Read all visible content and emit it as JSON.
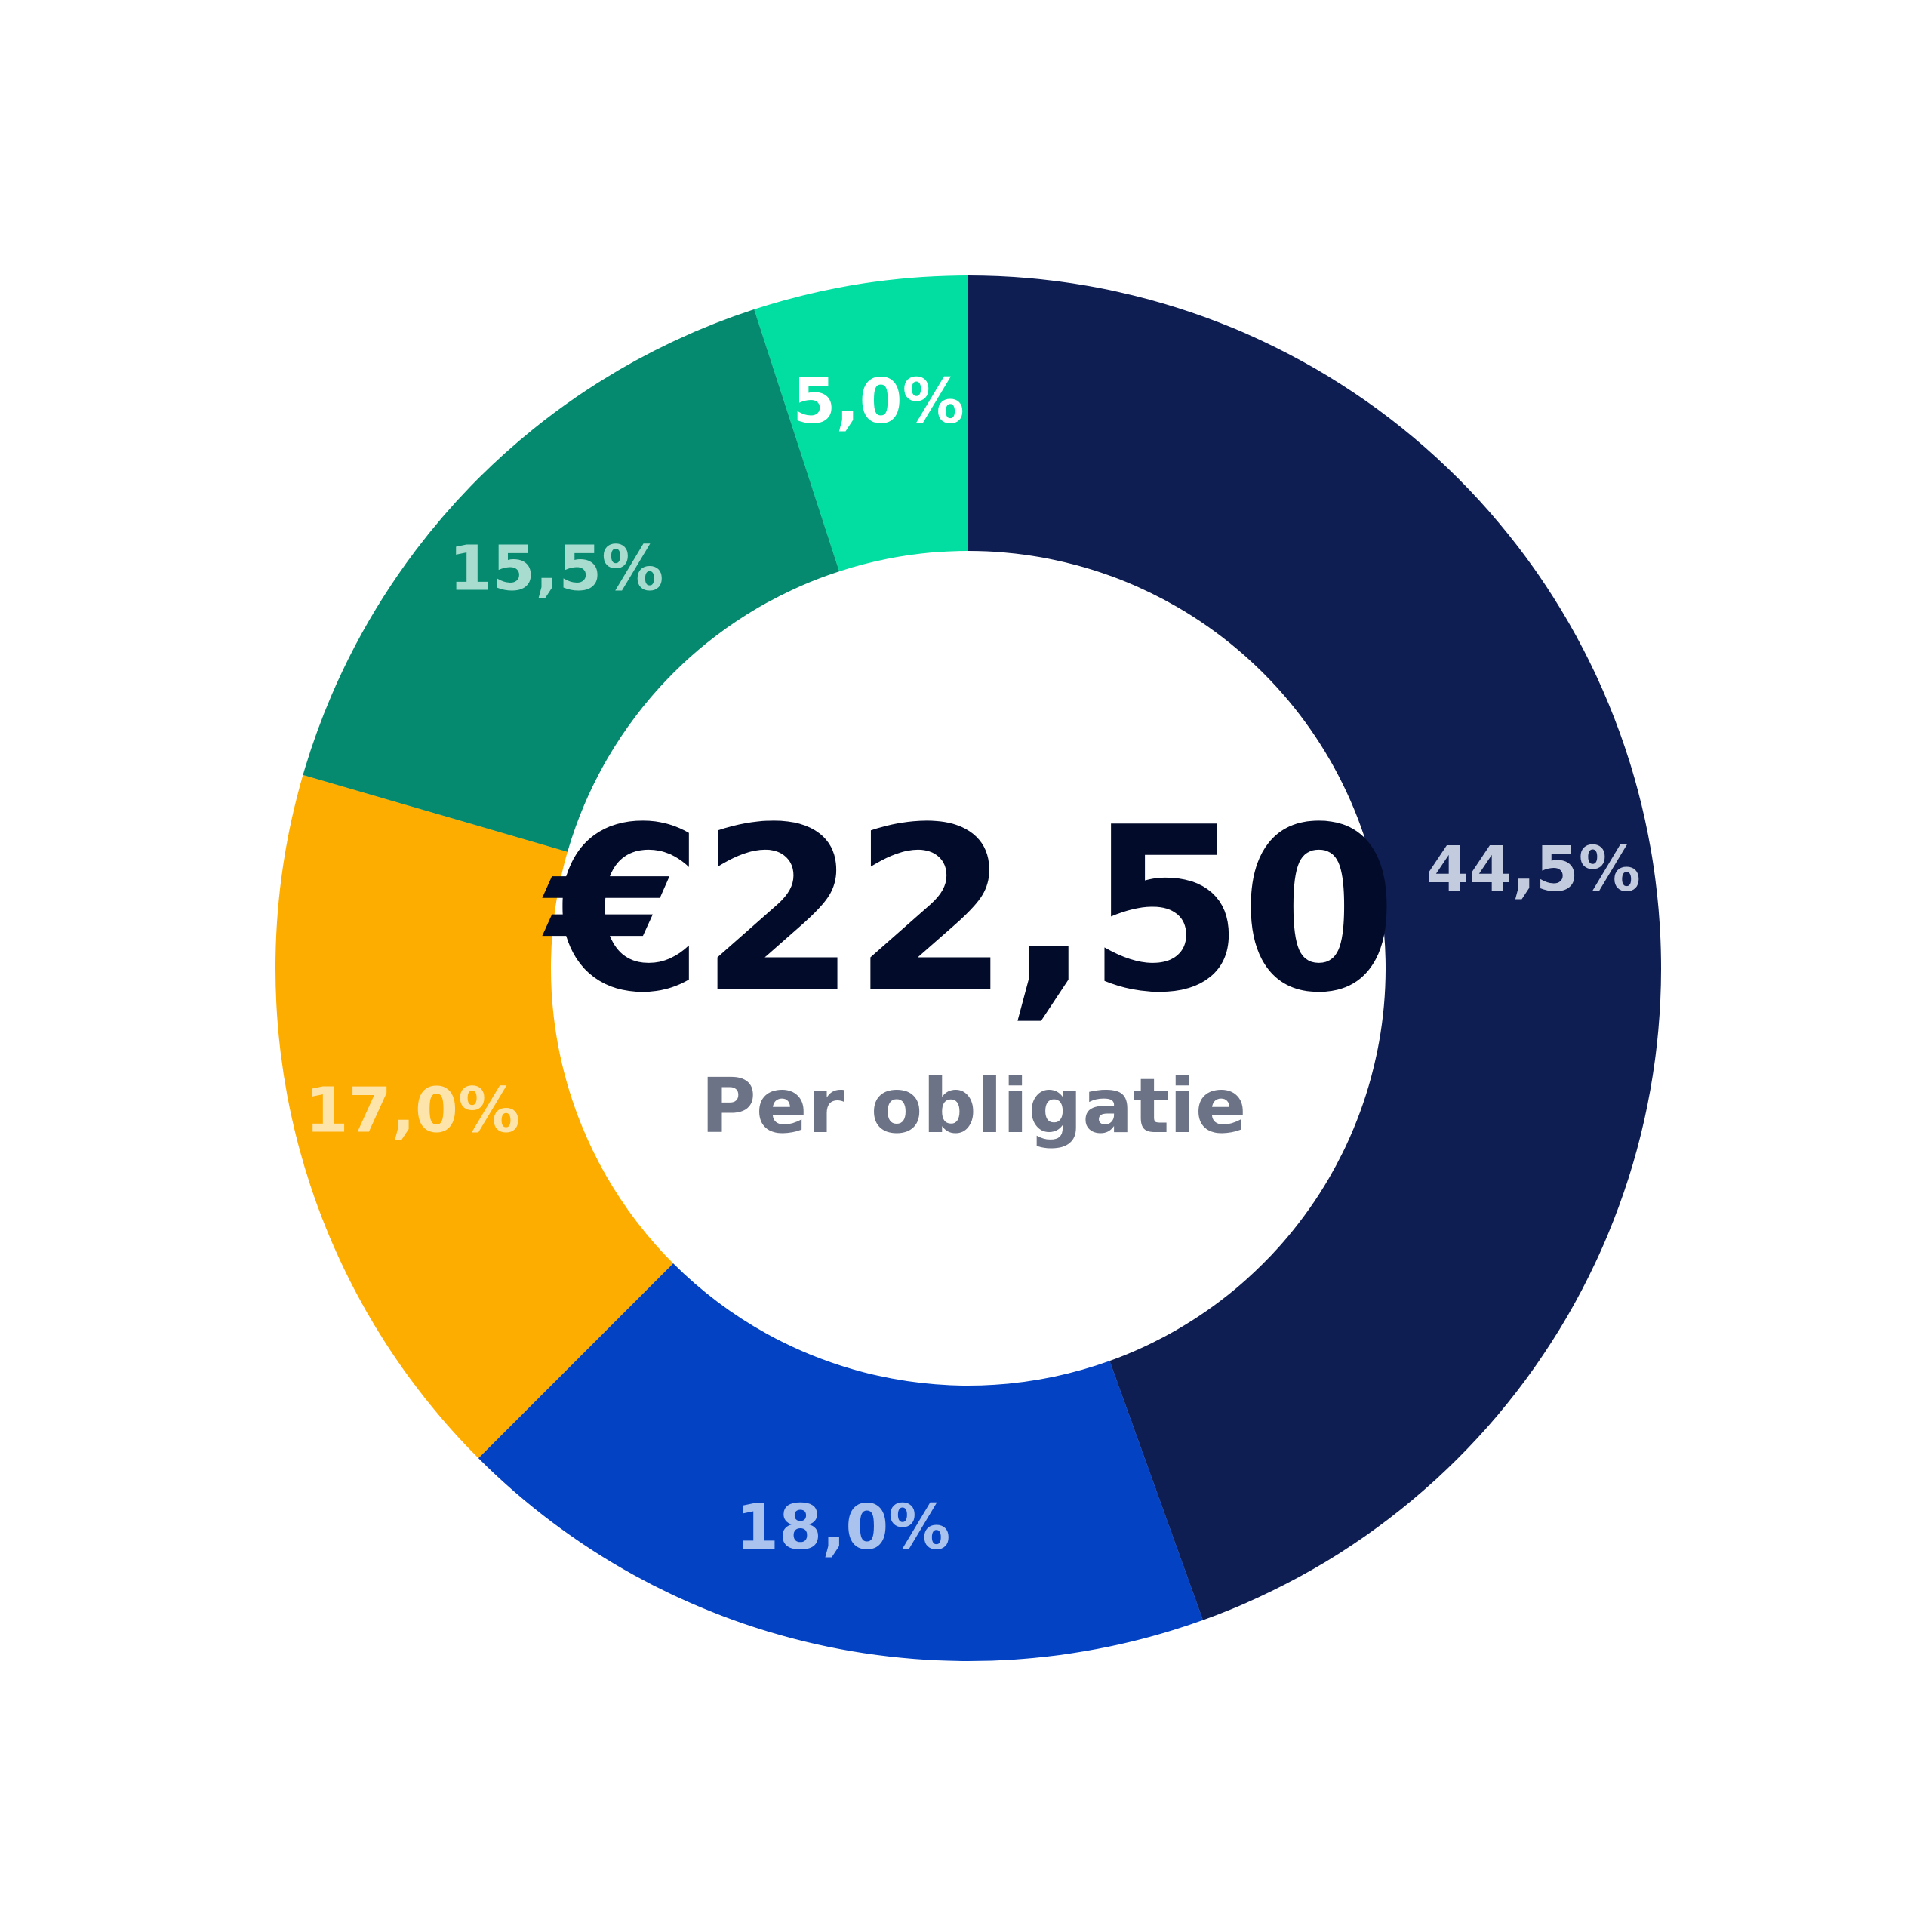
{
  "chart_data": {
    "type": "pie",
    "donut": true,
    "slices": [
      {
        "label": "44,5%",
        "value": 44.5,
        "color": "#0f1e52",
        "label_color": "#c3cbdf"
      },
      {
        "label": "18,0%",
        "value": 18.0,
        "color": "#0242c3",
        "label_color": "#a9c2ee"
      },
      {
        "label": "17,0%",
        "value": 17.0,
        "color": "#fdad00",
        "label_color": "#fde4ab"
      },
      {
        "label": "15,5%",
        "value": 15.5,
        "color": "#058a6f",
        "label_color": "#a8dccf"
      },
      {
        "label": "5,0%",
        "value": 5.0,
        "color": "#02dea1",
        "label_color": "#ffffff"
      }
    ],
    "center": {
      "value": "€22,50",
      "caption": "Per obligatie",
      "value_color": "#020b2a",
      "caption_color": "#6c7386"
    },
    "legend": "none",
    "start": "top",
    "direction": "clockwise"
  }
}
